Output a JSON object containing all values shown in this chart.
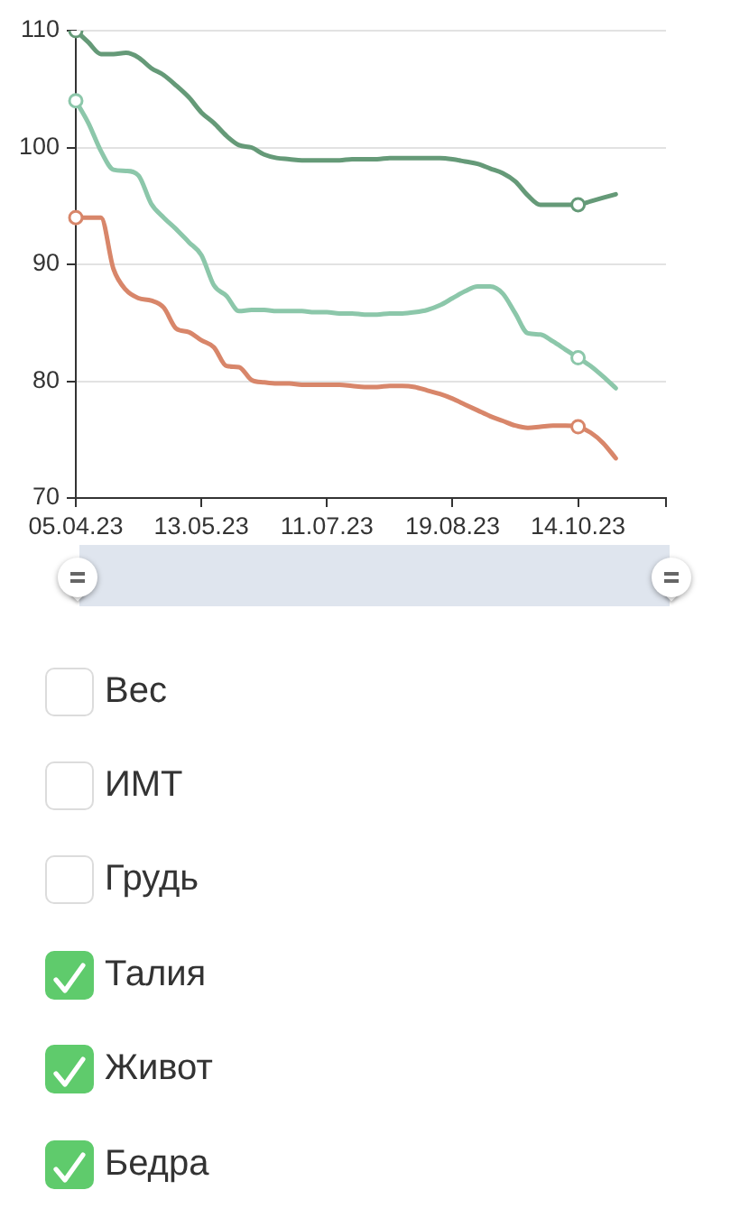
{
  "chart_data": {
    "type": "line",
    "categories": [
      "05.04.23",
      null,
      null,
      null,
      null,
      null,
      null,
      null,
      null,
      null,
      "13.05.23",
      null,
      null,
      null,
      null,
      null,
      null,
      null,
      null,
      null,
      "11.07.23",
      null,
      null,
      null,
      null,
      null,
      null,
      null,
      null,
      null,
      "19.08.23",
      null,
      null,
      null,
      null,
      null,
      null,
      null,
      null,
      null,
      "14.10.23",
      null,
      null,
      null,
      null,
      null,
      null,
      null
    ],
    "ylim": [
      70,
      110
    ],
    "yticks": [
      70,
      80,
      90,
      100,
      110
    ],
    "grid": "y",
    "series": [
      {
        "color": "#659a78",
        "values": [
          110.0,
          109.0,
          108.0,
          108.0,
          108.1,
          107.7,
          106.8,
          106.2,
          105.3,
          104.3,
          103.0,
          102.1,
          101.0,
          100.2,
          100.0,
          99.4,
          99.1,
          99.0,
          98.9,
          98.9,
          98.9,
          98.9,
          99.0,
          99.0,
          99.0,
          99.1,
          99.1,
          99.1,
          99.1,
          99.1,
          99.0,
          98.8,
          98.6,
          98.2,
          97.8,
          97.1,
          95.9,
          95.1,
          95.1,
          95.1,
          95.1,
          95.4,
          95.7,
          96.0,
          null,
          null,
          null,
          null
        ]
      },
      {
        "color": "#8cc7aa",
        "values": [
          104.0,
          102.1,
          99.7,
          98.1,
          98.0,
          97.6,
          95.2,
          94.0,
          93.0,
          91.9,
          90.8,
          88.2,
          87.3,
          86.0,
          86.1,
          86.1,
          86.0,
          86.0,
          86.0,
          85.9,
          85.9,
          85.8,
          85.8,
          85.7,
          85.7,
          85.8,
          85.8,
          85.9,
          86.1,
          86.5,
          87.1,
          87.7,
          88.1,
          88.1,
          87.5,
          85.8,
          84.1,
          84.0,
          83.4,
          82.7,
          82.0,
          81.3,
          80.4,
          79.4,
          null,
          null,
          null,
          null
        ]
      },
      {
        "color": "#d8866a",
        "values": [
          94.0,
          94.0,
          94.0,
          89.6,
          87.8,
          87.1,
          86.9,
          86.3,
          84.5,
          84.2,
          83.5,
          82.9,
          81.3,
          81.2,
          80.1,
          79.9,
          79.8,
          79.8,
          79.7,
          79.7,
          79.7,
          79.7,
          79.6,
          79.5,
          79.5,
          79.6,
          79.6,
          79.5,
          79.2,
          78.9,
          78.5,
          78.0,
          77.5,
          77.0,
          76.6,
          76.2,
          76.0,
          76.1,
          76.2,
          76.2,
          76.1,
          75.6,
          74.7,
          73.4,
          null,
          null,
          null,
          null
        ]
      },
      {
        "type": "scatter",
        "marker": "circle",
        "color": "#659a78",
        "x": [
          "05.04.23",
          "14.10.23"
        ],
        "values": [
          110.0,
          95.1
        ]
      },
      {
        "type": "scatter",
        "marker": "circle",
        "color": "#8cc7aa",
        "x": [
          "05.04.23",
          "14.10.23"
        ],
        "values": [
          104.0,
          82.0
        ]
      },
      {
        "type": "scatter",
        "marker": "circle",
        "color": "#d8866a",
        "x": [
          "05.04.23",
          "14.10.23"
        ],
        "values": [
          94.0,
          76.1
        ]
      }
    ],
    "annotations": [
      "Вес",
      "ИМТ",
      "Грудь",
      "Талия",
      "Живот",
      "Бедра"
    ]
  }
}
